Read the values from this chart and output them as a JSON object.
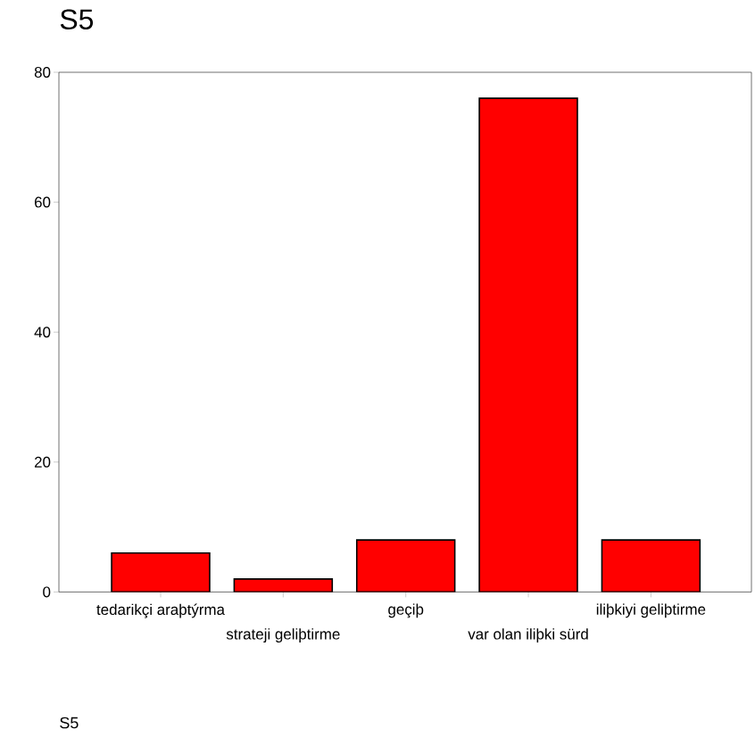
{
  "chart_data": {
    "type": "bar",
    "title": "S5",
    "categories": [
      "tedarikçi araþtýrma",
      "strateji geliþtirme",
      "geçiþ",
      "var olan iliþki sürd",
      "iliþkiyi geliþtirme"
    ],
    "values": [
      6,
      2,
      8,
      76,
      8
    ],
    "color": "#ff0000",
    "ylim": [
      0,
      80
    ],
    "yticks": [
      0,
      20,
      40,
      60,
      80
    ],
    "grid": false,
    "annotations": [
      "S5"
    ]
  }
}
